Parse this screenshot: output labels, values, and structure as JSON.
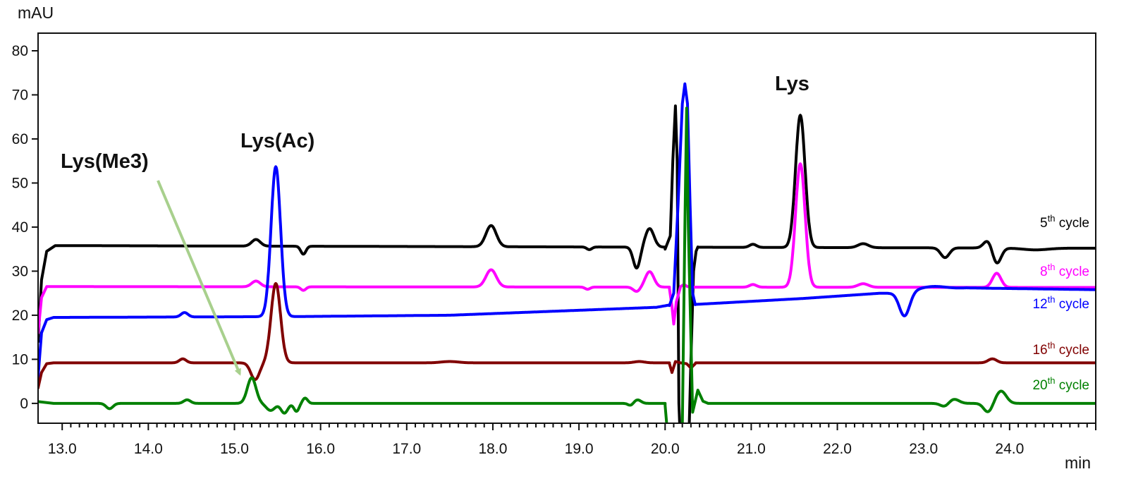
{
  "chart_data": {
    "type": "line",
    "title": "",
    "xlabel": "min",
    "ylabel": "mAU",
    "xlim": [
      12.72,
      25.0
    ],
    "ylim": [
      -4.5,
      84
    ],
    "grid": false,
    "legend": "right",
    "x_ticks": [
      "13.0",
      "14.0",
      "15.0",
      "16.0",
      "17.0",
      "18.0",
      "19.0",
      "20.0",
      "21.0",
      "22.0",
      "23.0",
      "24.0"
    ],
    "y_ticks": [
      "0",
      "10",
      "20",
      "30",
      "40",
      "50",
      "60",
      "70",
      "80"
    ],
    "annotations": [
      {
        "text": "Lys(Me3)",
        "arrow_to_x": 15.12,
        "arrow_to_y": 5.8
      },
      {
        "text": "Lys(Ac)"
      },
      {
        "text": "Lys"
      }
    ],
    "series": [
      {
        "name": "5th cycle",
        "sup": "th",
        "base": "5",
        "rest": " cycle",
        "color": "#000000",
        "baseline": 35.8,
        "start": [
          [
            12.72,
            14
          ],
          [
            12.76,
            28
          ],
          [
            12.82,
            34.5
          ],
          [
            12.92,
            35.8
          ]
        ],
        "features": [
          [
            15.25,
            1.5,
            0.05
          ],
          [
            15.8,
            -1.8,
            0.03
          ],
          [
            17.98,
            4.8,
            0.06
          ],
          [
            19.12,
            -0.6,
            0.03
          ],
          [
            19.67,
            -4.8,
            0.04
          ],
          [
            19.82,
            4.2,
            0.05
          ],
          [
            21.02,
            0.7,
            0.04
          ],
          [
            21.57,
            30.0,
            0.055
          ],
          [
            22.3,
            0.9,
            0.06
          ],
          [
            23.25,
            -2.2,
            0.05
          ],
          [
            23.75,
            1.8,
            0.05
          ],
          [
            23.85,
            -3.6,
            0.05
          ],
          [
            24.3,
            -0.4,
            0.15
          ]
        ],
        "gap": [
          20.0,
          20.38
        ],
        "gap_points": [
          [
            20.0,
            35.0
          ],
          [
            20.06,
            38
          ],
          [
            20.09,
            55
          ],
          [
            20.12,
            67.5
          ],
          [
            20.14,
            55
          ],
          [
            20.16,
            0
          ],
          [
            20.17,
            -5
          ],
          [
            20.28,
            -5
          ],
          [
            20.3,
            10
          ],
          [
            20.33,
            30
          ],
          [
            20.36,
            34.5
          ],
          [
            20.38,
            35.5
          ]
        ],
        "end_offset": -0.6
      },
      {
        "name": "8th cycle",
        "sup": "th",
        "base": "8",
        "rest": " cycle",
        "color": "#ff00ff",
        "baseline": 26.5,
        "start": [
          [
            12.72,
            16
          ],
          [
            12.76,
            24
          ],
          [
            12.82,
            26.5
          ]
        ],
        "features": [
          [
            15.25,
            1.3,
            0.05
          ],
          [
            15.8,
            -0.8,
            0.03
          ],
          [
            17.98,
            3.9,
            0.06
          ],
          [
            19.1,
            -0.5,
            0.03
          ],
          [
            19.67,
            -1.0,
            0.04
          ],
          [
            19.82,
            3.5,
            0.05
          ],
          [
            21.02,
            0.6,
            0.04
          ],
          [
            21.57,
            28.0,
            0.055
          ],
          [
            22.3,
            0.8,
            0.06
          ],
          [
            23.85,
            3.2,
            0.05
          ]
        ],
        "gap": [
          20.05,
          20.3
        ],
        "gap_points": [
          [
            20.05,
            26.0
          ],
          [
            20.08,
            22
          ],
          [
            20.1,
            18
          ],
          [
            20.13,
            23
          ],
          [
            20.18,
            26.5
          ],
          [
            20.22,
            27
          ],
          [
            20.26,
            26.5
          ],
          [
            20.3,
            26.5
          ]
        ],
        "end_offset": -0.2
      },
      {
        "name": "12th cycle",
        "sup": "th",
        "base": "12",
        "rest": " cycle",
        "color": "#0000ff",
        "baseline": 19.5,
        "start": [
          [
            12.72,
            6
          ],
          [
            12.76,
            16
          ],
          [
            12.82,
            19.0
          ],
          [
            12.9,
            19.5
          ]
        ],
        "features": [
          [
            14.42,
            1.0,
            0.04
          ],
          [
            15.48,
            34.0,
            0.055
          ],
          [
            22.78,
            -5.5,
            0.06
          ],
          [
            23.1,
            0.8,
            0.15
          ]
        ],
        "drift": [
          [
            12.9,
            19.5
          ],
          [
            15.7,
            19.7
          ],
          [
            17.5,
            20.0
          ],
          [
            19.9,
            21.8
          ],
          [
            20.1,
            22.5
          ],
          [
            20.3,
            22.4
          ],
          [
            21.6,
            23.8
          ],
          [
            22.5,
            25.0
          ],
          [
            22.6,
            25.0
          ],
          [
            23.0,
            25.6
          ],
          [
            23.5,
            26.2
          ],
          [
            25.0,
            25.8
          ]
        ],
        "gap": [
          20.05,
          20.35
        ],
        "gap_points": [
          [
            20.05,
            22.2
          ],
          [
            20.1,
            25
          ],
          [
            20.15,
            45
          ],
          [
            20.2,
            68
          ],
          [
            20.23,
            72.5
          ],
          [
            20.26,
            68
          ],
          [
            20.29,
            45
          ],
          [
            20.32,
            25
          ],
          [
            20.35,
            22.4
          ]
        ],
        "end_offset": 0
      },
      {
        "name": "16th cycle",
        "sup": "th",
        "base": "16",
        "rest": " cycle",
        "color": "#800000",
        "baseline": 9.2,
        "start": [
          [
            12.72,
            3.5
          ],
          [
            12.76,
            7.0
          ],
          [
            12.82,
            9.0
          ],
          [
            12.9,
            9.2
          ]
        ],
        "features": [
          [
            14.4,
            0.9,
            0.04
          ],
          [
            15.24,
            -3.8,
            0.05
          ],
          [
            15.48,
            18.0,
            0.055
          ],
          [
            17.5,
            0.3,
            0.1
          ],
          [
            19.7,
            0.3,
            0.06
          ],
          [
            23.8,
            0.9,
            0.05
          ]
        ],
        "gap": [
          20.05,
          20.35
        ],
        "gap_points": [
          [
            20.05,
            9.0
          ],
          [
            20.08,
            7
          ],
          [
            20.12,
            9.5
          ],
          [
            20.18,
            9.2
          ],
          [
            20.25,
            9.0
          ],
          [
            20.3,
            8.0
          ],
          [
            20.35,
            9.0
          ]
        ],
        "end_offset": 0
      },
      {
        "name": "20th cycle",
        "sup": "th",
        "base": "20",
        "rest": " cycle",
        "color": "#008000",
        "baseline": 0.0,
        "start": [
          [
            12.72,
            0.4
          ],
          [
            12.9,
            0.0
          ]
        ],
        "features": [
          [
            13.55,
            -1.2,
            0.04
          ],
          [
            14.45,
            0.8,
            0.04
          ],
          [
            15.2,
            5.8,
            0.05
          ],
          [
            15.42,
            -1.6,
            0.05
          ],
          [
            15.58,
            -2.2,
            0.04
          ],
          [
            15.72,
            -1.8,
            0.03
          ],
          [
            15.82,
            1.2,
            0.03
          ],
          [
            19.6,
            -0.5,
            0.03
          ],
          [
            19.68,
            0.8,
            0.04
          ],
          [
            23.25,
            -0.8,
            0.05
          ],
          [
            23.35,
            1.0,
            0.06
          ],
          [
            23.75,
            -2.0,
            0.05
          ],
          [
            23.9,
            2.8,
            0.06
          ]
        ],
        "gap": [
          20.0,
          20.5
        ],
        "gap_points": [
          [
            20.0,
            -0.5
          ],
          [
            20.02,
            -5
          ],
          [
            20.2,
            -5
          ],
          [
            20.23,
            40
          ],
          [
            20.25,
            67
          ],
          [
            20.27,
            40
          ],
          [
            20.32,
            -2
          ],
          [
            20.38,
            3
          ],
          [
            20.44,
            0.5
          ],
          [
            20.5,
            0
          ]
        ],
        "end_offset": 0
      }
    ]
  }
}
